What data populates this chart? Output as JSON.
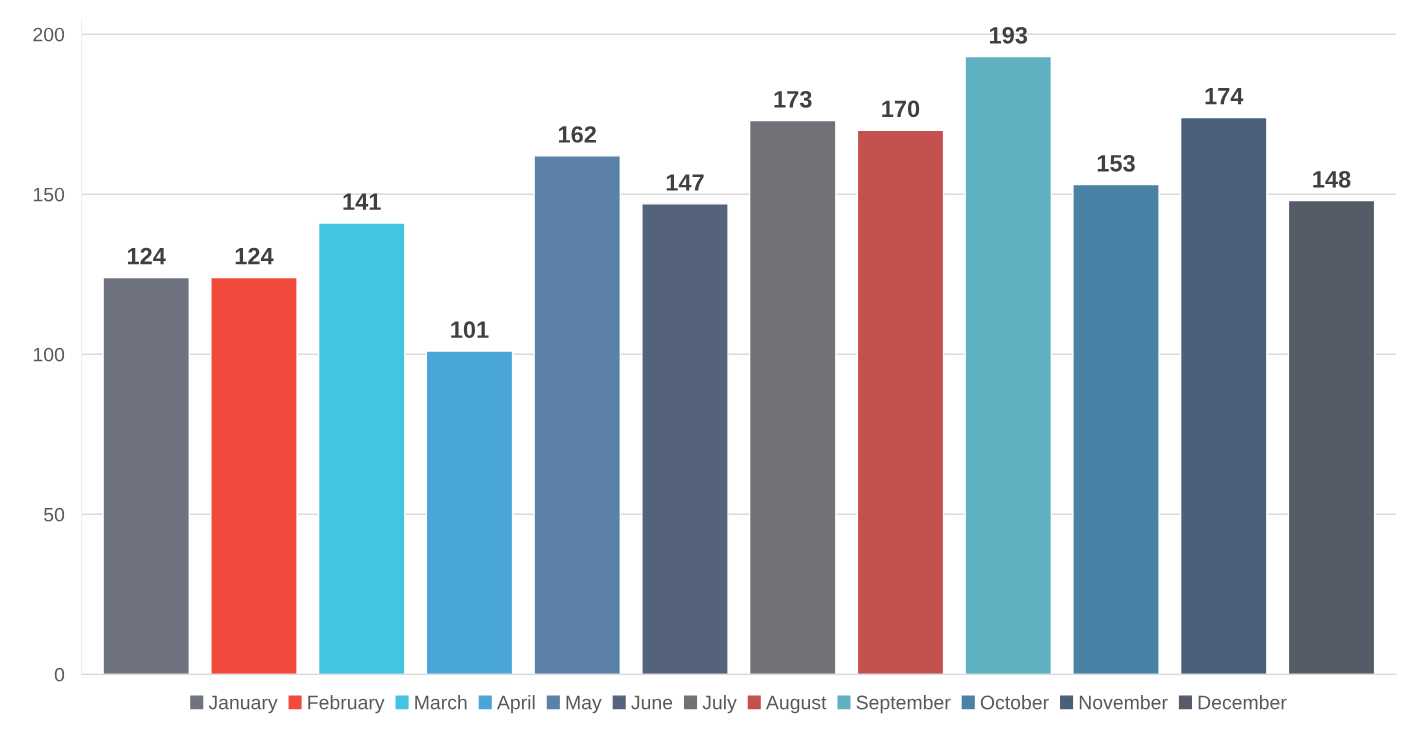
{
  "chart_data": {
    "type": "bar",
    "categories": [
      null,
      null,
      null,
      null,
      null,
      null,
      null,
      null,
      null,
      null,
      null,
      null
    ],
    "series": [
      {
        "name": "January",
        "color": "#6f737f",
        "values": [
          124,
          null,
          null,
          null,
          null,
          null,
          null,
          null,
          null,
          null,
          null,
          null
        ]
      },
      {
        "name": "February",
        "color": "#f04a3c",
        "values": [
          null,
          124,
          null,
          null,
          null,
          null,
          null,
          null,
          null,
          null,
          null,
          null
        ]
      },
      {
        "name": "March",
        "color": "#42c4e2",
        "values": [
          null,
          null,
          141,
          null,
          null,
          null,
          null,
          null,
          null,
          null,
          null,
          null
        ]
      },
      {
        "name": "April",
        "color": "#4aa6d6",
        "values": [
          null,
          null,
          null,
          101,
          null,
          null,
          null,
          null,
          null,
          null,
          null,
          null
        ]
      },
      {
        "name": "May",
        "color": "#5b81a8",
        "values": [
          null,
          null,
          null,
          null,
          162,
          null,
          null,
          null,
          null,
          null,
          null,
          null
        ]
      },
      {
        "name": "June",
        "color": "#55627c",
        "values": [
          null,
          null,
          null,
          null,
          null,
          147,
          null,
          null,
          null,
          null,
          null,
          null
        ]
      },
      {
        "name": "July",
        "color": "#707278",
        "values": [
          null,
          null,
          null,
          null,
          null,
          null,
          173,
          null,
          null,
          null,
          null,
          null
        ]
      },
      {
        "name": "August",
        "color": "#c4514d",
        "values": [
          null,
          null,
          null,
          null,
          null,
          null,
          null,
          170,
          null,
          null,
          null,
          null
        ]
      },
      {
        "name": "September",
        "color": "#5fb0c0",
        "values": [
          null,
          null,
          null,
          null,
          null,
          null,
          null,
          null,
          193,
          null,
          null,
          null
        ]
      },
      {
        "name": "October",
        "color": "#4a82a6",
        "values": [
          null,
          null,
          null,
          null,
          null,
          null,
          null,
          null,
          null,
          153,
          null,
          null
        ]
      },
      {
        "name": "November",
        "color": "#4a5f78",
        "values": [
          null,
          null,
          null,
          null,
          null,
          null,
          null,
          null,
          null,
          null,
          174,
          null
        ]
      },
      {
        "name": "December",
        "color": "#555c68",
        "values": [
          null,
          null,
          null,
          null,
          null,
          null,
          null,
          null,
          null,
          null,
          null,
          148
        ]
      }
    ],
    "ylim": [
      0,
      205
    ],
    "yticks": [
      0,
      50,
      100,
      150,
      200
    ],
    "grid": "y",
    "legend": "bottom",
    "data_labels": true
  }
}
